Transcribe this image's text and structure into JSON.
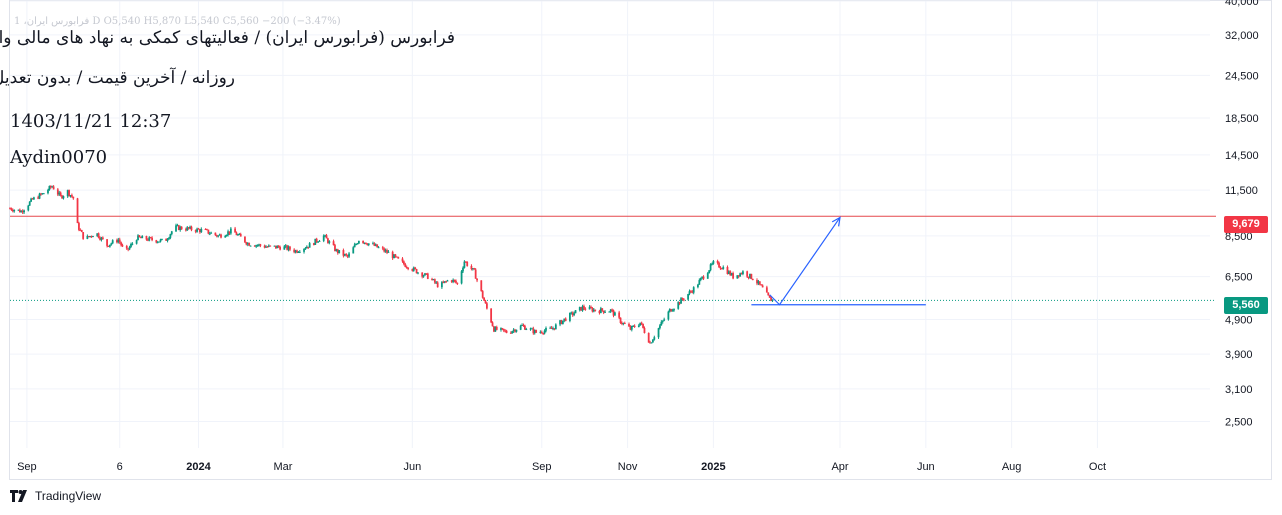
{
  "header": {
    "ohlc_line": "فرابورس ایران، 1  D  O5,540  H5,870  L5,540  C5,560  −200 (−3.47%)",
    "title": "فرابورس (فرابورس ایران) / فعالیتهای کمکی به نهاد های مالی واسط",
    "subtitle": "روزانه / آخرین قیمت / بدون تعدیل",
    "datetime": "1403/11/21 12:37",
    "author": "Aydin0070"
  },
  "price_tags": {
    "resistance": "9,679",
    "last": "5,560"
  },
  "footer": {
    "brand": "TradingView"
  },
  "colors": {
    "up": "#089981",
    "down": "#f23645",
    "resistance_line": "#e5484d",
    "last_price_line": "#089981",
    "projection": "#2962ff",
    "grid": "#f0f3fa",
    "axis_text": "#131722"
  },
  "chart_data": {
    "type": "candlestick",
    "scale": "log",
    "ylim": [
      2100,
      40000
    ],
    "y_ticks": [
      40000,
      32000,
      24500,
      18500,
      14500,
      11500,
      8500,
      6500,
      4900,
      3900,
      3100,
      2500
    ],
    "y_tick_labels": [
      "40,000",
      "32,000",
      "24,500",
      "18,500",
      "14,500",
      "11,500",
      "8,500",
      "6,500",
      "4,900",
      "3,900",
      "3,100",
      "2,500"
    ],
    "x_ticks": [
      {
        "label": "Sep",
        "date": "2023-09-01",
        "bold": false
      },
      {
        "label": "6",
        "date": "2023-11-06",
        "bold": false
      },
      {
        "label": "2024",
        "date": "2024-01-01",
        "bold": true
      },
      {
        "label": "Mar",
        "date": "2024-03-01",
        "bold": false
      },
      {
        "label": "Jun",
        "date": "2024-06-01",
        "bold": false
      },
      {
        "label": "Sep",
        "date": "2024-09-01",
        "bold": false
      },
      {
        "label": "Nov",
        "date": "2024-11-01",
        "bold": false
      },
      {
        "label": "2025",
        "date": "2025-01-01",
        "bold": true
      },
      {
        "label": "Apr",
        "date": "2025-04-01",
        "bold": false
      },
      {
        "label": "Jun",
        "date": "2025-06-01",
        "bold": false
      },
      {
        "label": "Aug",
        "date": "2025-08-01",
        "bold": false
      },
      {
        "label": "Oct",
        "date": "2025-10-01",
        "bold": false
      }
    ],
    "xlim": [
      "2023-08-20",
      "2025-12-20"
    ],
    "price_path": [
      [
        "2023-08-20",
        10200
      ],
      [
        "2023-08-28",
        10000
      ],
      [
        "2023-09-05",
        10800
      ],
      [
        "2023-09-12",
        11200
      ],
      [
        "2023-09-19",
        11800
      ],
      [
        "2023-09-25",
        11000
      ],
      [
        "2023-09-30",
        11400
      ],
      [
        "2023-10-04",
        10900
      ],
      [
        "2023-10-06",
        9300
      ],
      [
        "2023-10-12",
        8300
      ],
      [
        "2023-10-20",
        8700
      ],
      [
        "2023-10-28",
        8000
      ],
      [
        "2023-11-05",
        8300
      ],
      [
        "2023-11-10",
        7600
      ],
      [
        "2023-11-18",
        8400
      ],
      [
        "2023-11-28",
        8300
      ],
      [
        "2023-12-08",
        8200
      ],
      [
        "2023-12-15",
        9000
      ],
      [
        "2023-12-25",
        8900
      ],
      [
        "2024-01-05",
        8800
      ],
      [
        "2024-01-15",
        8500
      ],
      [
        "2024-01-25",
        8800
      ],
      [
        "2024-02-05",
        8100
      ],
      [
        "2024-02-20",
        7900
      ],
      [
        "2024-03-01",
        7900
      ],
      [
        "2024-03-10",
        7700
      ],
      [
        "2024-03-20",
        8000
      ],
      [
        "2024-03-30",
        8500
      ],
      [
        "2024-04-08",
        7700
      ],
      [
        "2024-04-16",
        7400
      ],
      [
        "2024-04-24",
        8300
      ],
      [
        "2024-05-04",
        8000
      ],
      [
        "2024-05-15",
        7600
      ],
      [
        "2024-05-25",
        7100
      ],
      [
        "2024-06-05",
        6700
      ],
      [
        "2024-06-12",
        6500
      ],
      [
        "2024-06-20",
        6100
      ],
      [
        "2024-06-28",
        6400
      ],
      [
        "2024-07-03",
        6200
      ],
      [
        "2024-07-08",
        7200
      ],
      [
        "2024-07-15",
        6700
      ],
      [
        "2024-07-23",
        5400
      ],
      [
        "2024-07-29",
        4600
      ],
      [
        "2024-08-08",
        4500
      ],
      [
        "2024-08-18",
        4700
      ],
      [
        "2024-08-28",
        4500
      ],
      [
        "2024-09-08",
        4600
      ],
      [
        "2024-09-20",
        5000
      ],
      [
        "2024-09-30",
        5300
      ],
      [
        "2024-10-10",
        5200
      ],
      [
        "2024-10-20",
        5200
      ],
      [
        "2024-10-28",
        4800
      ],
      [
        "2024-11-03",
        4600
      ],
      [
        "2024-11-10",
        4800
      ],
      [
        "2024-11-17",
        4200
      ],
      [
        "2024-11-24",
        4700
      ],
      [
        "2024-12-01",
        5200
      ],
      [
        "2024-12-10",
        5600
      ],
      [
        "2024-12-18",
        6000
      ],
      [
        "2024-12-26",
        6600
      ],
      [
        "2025-01-01",
        7100
      ],
      [
        "2025-01-08",
        6900
      ],
      [
        "2025-01-15",
        6500
      ],
      [
        "2025-01-22",
        6700
      ],
      [
        "2025-01-30",
        6400
      ],
      [
        "2025-02-05",
        6000
      ],
      [
        "2025-02-10",
        5600
      ],
      [
        "2025-02-13",
        5560
      ]
    ],
    "resistance": 9679,
    "last_price": 5560,
    "drawings": {
      "support_line": {
        "from": [
          "2025-01-28",
          5400
        ],
        "to": [
          "2025-06-01",
          5400
        ]
      },
      "projection": [
        [
          "2025-02-17",
          5400
        ],
        [
          "2025-04-01",
          9600
        ]
      ]
    }
  }
}
